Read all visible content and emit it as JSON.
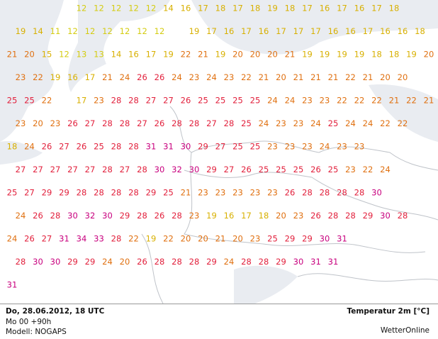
{
  "grid": {
    "rows": [
      [
        null,
        null,
        null,
        null,
        12,
        12,
        12,
        12,
        12,
        14,
        16,
        17,
        18,
        17,
        18,
        19,
        18,
        17,
        16,
        17,
        16,
        17,
        18,
        null,
        null
      ],
      [
        19,
        14,
        11,
        12,
        12,
        12,
        12,
        12,
        12,
        null,
        19,
        17,
        16,
        17,
        16,
        17,
        17,
        17,
        16,
        16,
        17,
        16,
        16,
        18,
        null
      ],
      [
        21,
        20,
        15,
        12,
        13,
        13,
        14,
        16,
        17,
        19,
        22,
        21,
        19,
        20,
        20,
        20,
        21,
        19,
        19,
        19,
        19,
        18,
        18,
        19,
        20
      ],
      [
        23,
        22,
        19,
        16,
        17,
        21,
        24,
        26,
        26,
        24,
        23,
        24,
        23,
        22,
        21,
        20,
        21,
        21,
        21,
        22,
        21,
        20,
        20,
        null,
        null
      ],
      [
        25,
        25,
        22,
        null,
        17,
        23,
        28,
        28,
        27,
        27,
        26,
        25,
        25,
        25,
        25,
        24,
        24,
        23,
        23,
        22,
        22,
        22,
        21,
        22,
        21
      ],
      [
        23,
        20,
        23,
        26,
        27,
        28,
        28,
        27,
        26,
        28,
        28,
        27,
        28,
        25,
        24,
        23,
        23,
        24,
        25,
        24,
        24,
        22,
        22,
        null,
        null
      ],
      [
        18,
        24,
        26,
        27,
        26,
        25,
        28,
        28,
        31,
        31,
        30,
        29,
        27,
        25,
        25,
        23,
        23,
        23,
        24,
        23,
        23,
        null,
        null,
        null,
        null
      ],
      [
        27,
        27,
        27,
        27,
        27,
        28,
        27,
        28,
        30,
        32,
        30,
        29,
        27,
        26,
        25,
        25,
        25,
        26,
        25,
        23,
        22,
        24,
        null,
        null,
        null
      ],
      [
        25,
        27,
        29,
        29,
        28,
        28,
        28,
        28,
        29,
        25,
        21,
        23,
        23,
        23,
        23,
        23,
        26,
        28,
        28,
        28,
        28,
        30,
        null,
        null,
        null
      ],
      [
        24,
        26,
        28,
        30,
        32,
        30,
        29,
        28,
        26,
        28,
        23,
        19,
        16,
        17,
        18,
        20,
        23,
        26,
        28,
        28,
        29,
        30,
        28,
        null,
        null
      ],
      [
        24,
        26,
        27,
        31,
        34,
        33,
        28,
        22,
        19,
        22,
        20,
        20,
        21,
        20,
        23,
        25,
        29,
        29,
        30,
        31,
        null,
        null,
        null,
        null,
        null
      ],
      [
        28,
        30,
        30,
        29,
        29,
        24,
        20,
        26,
        28,
        28,
        28,
        29,
        24,
        28,
        28,
        29,
        30,
        31,
        31,
        null,
        null,
        null,
        null,
        null,
        null
      ],
      [
        31,
        null,
        null,
        null,
        null,
        null,
        null,
        null,
        null,
        null,
        null,
        null,
        null,
        null,
        null,
        null,
        null,
        null,
        null,
        null,
        null,
        null,
        null,
        null,
        null
      ]
    ]
  },
  "footer": {
    "date": "Do, 28.06.2012, 18 UTC",
    "run": "Mo 00 +90h",
    "model": "Modell: NOGAPS",
    "parameter": "Temperatur 2m [°C]",
    "brand": "WetterOnline"
  }
}
